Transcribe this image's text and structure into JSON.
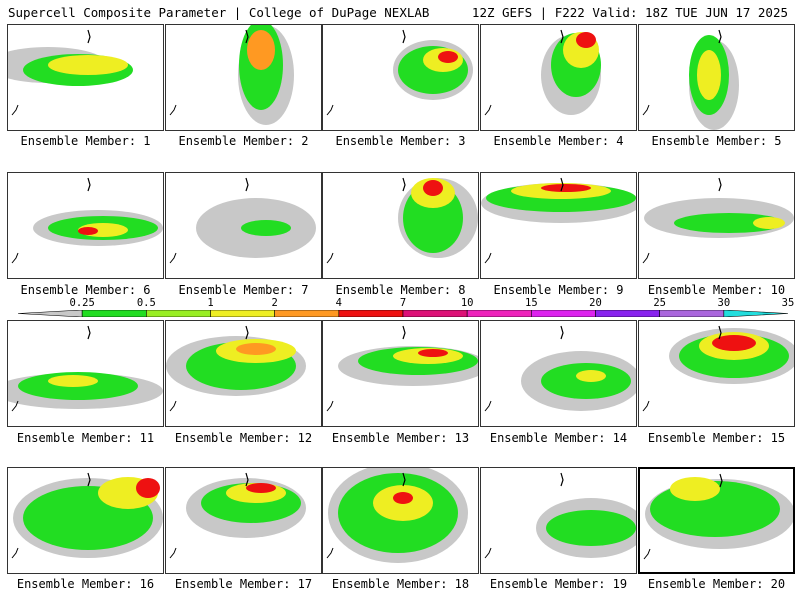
{
  "header": {
    "left": "Supercell Composite Parameter | College of DuPage NEXLAB",
    "right": "12Z GEFS | F222 Valid: 18Z TUE JUN 17 2025"
  },
  "members": [
    {
      "label": "Ensemble Member: 1",
      "highlighted": false
    },
    {
      "label": "Ensemble Member: 2",
      "highlighted": false
    },
    {
      "label": "Ensemble Member: 3",
      "highlighted": false
    },
    {
      "label": "Ensemble Member: 4",
      "highlighted": false
    },
    {
      "label": "Ensemble Member: 5",
      "highlighted": false
    },
    {
      "label": "Ensemble Member: 6",
      "highlighted": false
    },
    {
      "label": "Ensemble Member: 7",
      "highlighted": false
    },
    {
      "label": "Ensemble Member: 8",
      "highlighted": false
    },
    {
      "label": "Ensemble Member: 9",
      "highlighted": false
    },
    {
      "label": "Ensemble Member: 10",
      "highlighted": false
    },
    {
      "label": "Ensemble Member: 11",
      "highlighted": false
    },
    {
      "label": "Ensemble Member: 12",
      "highlighted": false
    },
    {
      "label": "Ensemble Member: 13",
      "highlighted": false
    },
    {
      "label": "Ensemble Member: 14",
      "highlighted": false
    },
    {
      "label": "Ensemble Member: 15",
      "highlighted": false
    },
    {
      "label": "Ensemble Member: 16",
      "highlighted": false
    },
    {
      "label": "Ensemble Member: 17",
      "highlighted": false
    },
    {
      "label": "Ensemble Member: 18",
      "highlighted": false
    },
    {
      "label": "Ensemble Member: 19",
      "highlighted": false
    },
    {
      "label": "Ensemble Member: 20",
      "highlighted": true
    }
  ],
  "colorbar": {
    "labels": [
      "0.25",
      "0.5",
      "1",
      "2",
      "4",
      "7",
      "10",
      "15",
      "20",
      "25",
      "30",
      "35"
    ],
    "colors": [
      "#c8c8c8",
      "#22dd22",
      "#99ee22",
      "#eeee22",
      "#ff9922",
      "#ee1111",
      "#dd1177",
      "#ee22bb",
      "#dd22ee",
      "#8822ee",
      "#aa66dd",
      "#22dddd"
    ]
  }
}
